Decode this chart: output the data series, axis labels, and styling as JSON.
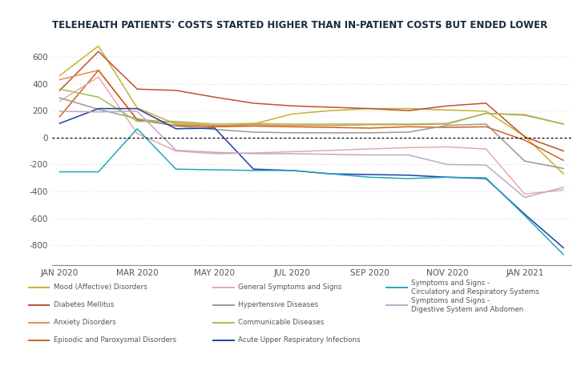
{
  "title": "TELEHEALTH PATIENTS' COSTS STARTED HIGHER THAN IN-PATIENT COSTS BUT ENDED LOWER",
  "background_color": "#ffffff",
  "grid_color": "#cccccc",
  "zero_line_color": "#111111",
  "x_labels": [
    "JAN 2020",
    "MAR 2020",
    "MAY 2020",
    "JUL 2020",
    "SEP 2020",
    "NOV 2020",
    "JAN 2021"
  ],
  "ylim": [
    -950,
    750
  ],
  "yticks": [
    -800,
    -600,
    -400,
    -200,
    0,
    200,
    400,
    600
  ],
  "series": [
    {
      "name": "Mood (Affective) Disorders",
      "color": "#c8b030",
      "legend_col": 0,
      "values": [
        460,
        680,
        220,
        100,
        80,
        100,
        175,
        200,
        215,
        215,
        205,
        195,
        10,
        -270
      ]
    },
    {
      "name": "Diabetes Mellitus",
      "color": "#c05030",
      "legend_col": 0,
      "values": [
        350,
        640,
        360,
        350,
        300,
        255,
        235,
        225,
        215,
        200,
        235,
        255,
        5,
        -100
      ]
    },
    {
      "name": "Anxiety Disorders",
      "color": "#e09050",
      "legend_col": 0,
      "values": [
        430,
        500,
        135,
        110,
        90,
        95,
        90,
        90,
        95,
        95,
        100,
        180,
        170,
        100
      ]
    },
    {
      "name": "Episodic and Paroxysmal Disorders",
      "color": "#d06020",
      "legend_col": 0,
      "values": [
        155,
        500,
        130,
        90,
        80,
        85,
        80,
        75,
        70,
        80,
        75,
        80,
        -20,
        -170
      ]
    },
    {
      "name": "General Symptoms and Signs",
      "color": "#e8a8b0",
      "legend_col": 1,
      "values": [
        270,
        450,
        30,
        -100,
        -120,
        -115,
        -105,
        -95,
        -85,
        -75,
        -70,
        -85,
        -420,
        -390
      ]
    },
    {
      "name": "Hypertensive Diseases",
      "color": "#999999",
      "legend_col": 1,
      "values": [
        295,
        210,
        140,
        85,
        60,
        40,
        35,
        35,
        35,
        40,
        90,
        100,
        -175,
        -230
      ]
    },
    {
      "name": "Communicable Diseases",
      "color": "#a0c050",
      "legend_col": 1,
      "values": [
        360,
        300,
        120,
        120,
        100,
        105,
        100,
        100,
        100,
        100,
        105,
        180,
        165,
        100
      ]
    },
    {
      "name": "Acute Upper Respiratory Infections",
      "color": "#2040a0",
      "legend_col": 1,
      "values": [
        105,
        215,
        215,
        65,
        70,
        -235,
        -245,
        -270,
        -275,
        -280,
        -295,
        -305,
        -570,
        -820
      ]
    },
    {
      "name": "Symptoms and Signs -\nCirculatory and Respiratory Systems",
      "color": "#20a8c0",
      "legend_col": 2,
      "values": [
        -255,
        -255,
        65,
        -235,
        -240,
        -245,
        -245,
        -270,
        -295,
        -305,
        -295,
        -300,
        -580,
        -870
      ]
    },
    {
      "name": "Symptoms and Signs -\nDigestive System and Abdomen",
      "color": "#c0a8c8",
      "legend_col": 2,
      "values": [
        195,
        190,
        195,
        -95,
        -110,
        -120,
        -120,
        -125,
        -130,
        -130,
        -200,
        -205,
        -445,
        -370
      ]
    }
  ]
}
